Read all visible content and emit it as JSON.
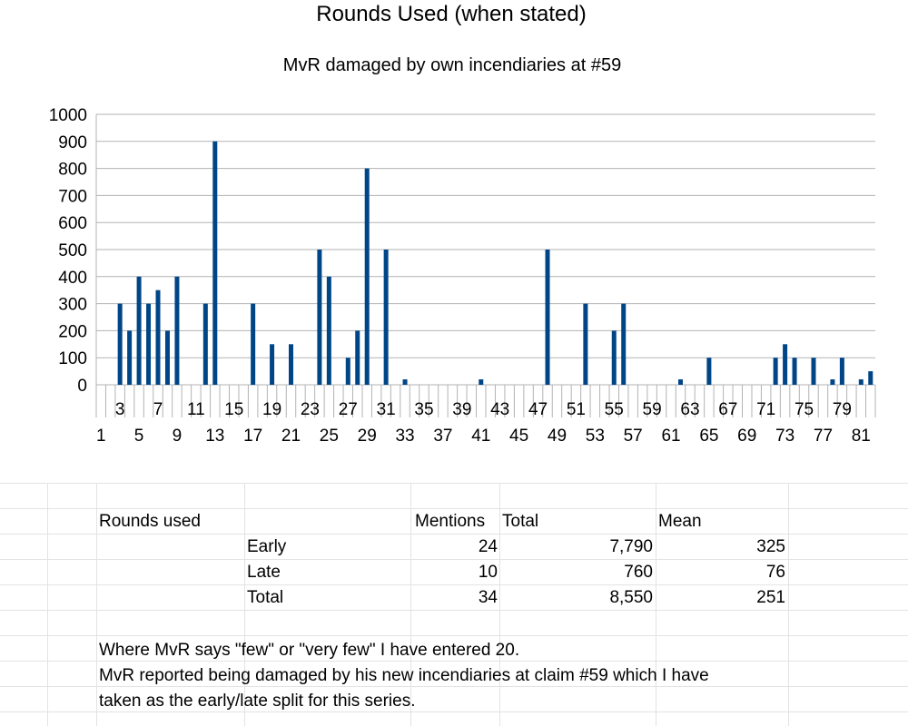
{
  "chart_data": {
    "type": "bar",
    "title": "Rounds Used (when stated)",
    "subtitle": "MvR damaged by own incendiaries at #59",
    "xlabel": "",
    "ylabel": "",
    "ylim": [
      0,
      1000
    ],
    "yticks": [
      "0",
      "100",
      "200",
      "300",
      "400",
      "500",
      "600",
      "700",
      "800",
      "900",
      "1000"
    ],
    "grid": true,
    "bar_color": "#004586",
    "x_range": [
      1,
      82
    ],
    "x_tick_labels_upper": [
      "3",
      "7",
      "11",
      "15",
      "19",
      "23",
      "27",
      "31",
      "35",
      "39",
      "43",
      "47",
      "51",
      "55",
      "59",
      "63",
      "67",
      "71",
      "75",
      "79"
    ],
    "x_tick_labels_lower": [
      "1",
      "5",
      "9",
      "13",
      "17",
      "21",
      "25",
      "29",
      "33",
      "37",
      "41",
      "45",
      "49",
      "53",
      "57",
      "61",
      "65",
      "69",
      "73",
      "77",
      "81"
    ],
    "points": [
      {
        "x": 3,
        "y": 300
      },
      {
        "x": 4,
        "y": 200
      },
      {
        "x": 5,
        "y": 400
      },
      {
        "x": 6,
        "y": 300
      },
      {
        "x": 7,
        "y": 350
      },
      {
        "x": 8,
        "y": 200
      },
      {
        "x": 9,
        "y": 400
      },
      {
        "x": 12,
        "y": 300
      },
      {
        "x": 13,
        "y": 900
      },
      {
        "x": 17,
        "y": 300
      },
      {
        "x": 19,
        "y": 150
      },
      {
        "x": 21,
        "y": 150
      },
      {
        "x": 24,
        "y": 500
      },
      {
        "x": 25,
        "y": 400
      },
      {
        "x": 27,
        "y": 100
      },
      {
        "x": 28,
        "y": 200
      },
      {
        "x": 29,
        "y": 800
      },
      {
        "x": 31,
        "y": 500
      },
      {
        "x": 33,
        "y": 20
      },
      {
        "x": 41,
        "y": 20
      },
      {
        "x": 48,
        "y": 500
      },
      {
        "x": 52,
        "y": 300
      },
      {
        "x": 55,
        "y": 200
      },
      {
        "x": 56,
        "y": 300
      },
      {
        "x": 62,
        "y": 20
      },
      {
        "x": 65,
        "y": 100
      },
      {
        "x": 72,
        "y": 100
      },
      {
        "x": 73,
        "y": 150
      },
      {
        "x": 74,
        "y": 100
      },
      {
        "x": 76,
        "y": 100
      },
      {
        "x": 78,
        "y": 20
      },
      {
        "x": 79,
        "y": 100
      },
      {
        "x": 81,
        "y": 20
      },
      {
        "x": 82,
        "y": 50
      }
    ]
  },
  "table": {
    "header": {
      "col1": "Rounds used",
      "col3": "Mentions",
      "col4": "Total",
      "col5": "Mean"
    },
    "rows": [
      {
        "label": "Early",
        "mentions": "24",
        "total": "7,790",
        "mean": "325"
      },
      {
        "label": "Late",
        "mentions": "10",
        "total": "760",
        "mean": "76"
      },
      {
        "label": "Total",
        "mentions": "34",
        "total": "8,550",
        "mean": "251"
      }
    ]
  },
  "notes": [
    "Where MvR says \"few\" or \"very few\" I have entered 20.",
    "MvR reported being damaged by his new incendiaries at claim #59 which I have",
    "taken as the early/late split for this series."
  ]
}
